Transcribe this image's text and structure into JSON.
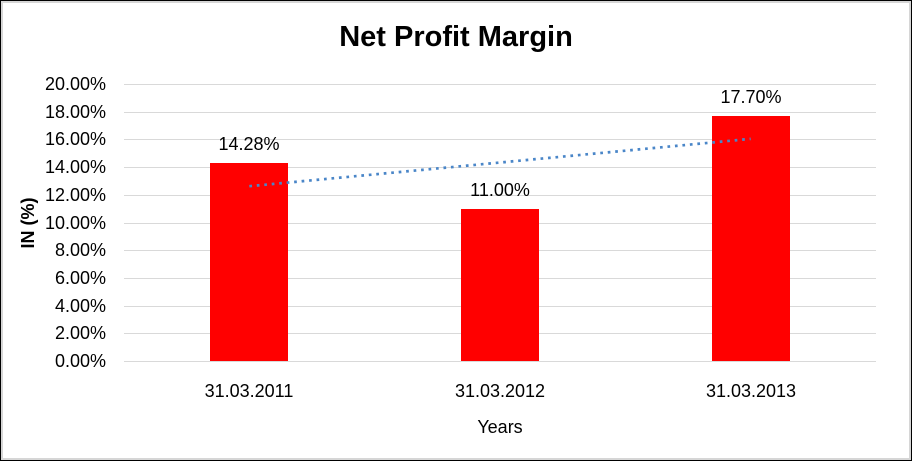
{
  "chart_data": {
    "type": "bar",
    "title": "Net Profit Margin",
    "xlabel": "Years",
    "ylabel": "IN (%)",
    "categories": [
      "31.03.2011",
      "31.03.2012",
      "31.03.2013"
    ],
    "series": [
      {
        "name": "Net Profit Margin",
        "values": [
          14.28,
          11.0,
          17.7
        ]
      }
    ],
    "data_labels": [
      "14.28%",
      "11.00%",
      "17.70%"
    ],
    "ylim": [
      0,
      20
    ],
    "y_tick_step": 2,
    "y_ticks": [
      {
        "value": 0,
        "label": "0.00%"
      },
      {
        "value": 2,
        "label": "2.00%"
      },
      {
        "value": 4,
        "label": "4.00%"
      },
      {
        "value": 6,
        "label": "6.00%"
      },
      {
        "value": 8,
        "label": "8.00%"
      },
      {
        "value": 10,
        "label": "10.00%"
      },
      {
        "value": 12,
        "label": "12.00%"
      },
      {
        "value": 14,
        "label": "14.00%"
      },
      {
        "value": 16,
        "label": "16.00%"
      },
      {
        "value": 18,
        "label": "18.00%"
      },
      {
        "value": 20,
        "label": "20.00%"
      }
    ],
    "grid": true,
    "legend": "none",
    "colors": {
      "bar": "#FF0000",
      "trendline": "#4A86C8",
      "gridline": "#D9D9D9",
      "text": "#000000"
    },
    "trendline": {
      "type": "linear",
      "style": "dotted",
      "start_value": 12.62,
      "end_value": 16.04
    }
  }
}
